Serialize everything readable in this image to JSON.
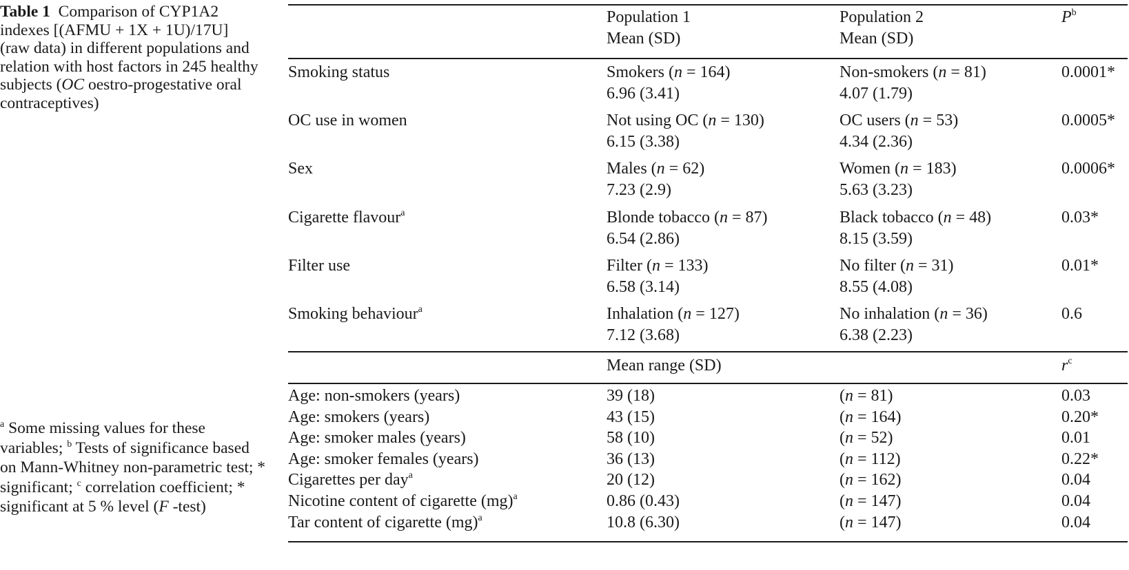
{
  "caption": {
    "label": "Table 1",
    "text": "Comparison of CYP1A2 indexes [(AFMU + 1X + 1U)/17U] (raw data) in different populations and relation with host factors in 245 healthy subjects (",
    "oc_abbrev": "OC",
    "text_end": " oestro-progestative oral contraceptives)"
  },
  "footnotes": {
    "a_mark": "a",
    "a_text": " Some missing values for these variables; ",
    "b_mark": "b",
    "b_text": " Tests of significance based on Mann-Whitney non-parametric test; * significant; ",
    "c_mark": "c",
    "c_text": " correlation coefficient; * significant at 5 % level (",
    "f_italic": "F",
    "f_end": " -test)"
  },
  "header": {
    "pop1_line1": "Population 1",
    "pop1_line2": "Mean (SD)",
    "pop2_line1": "Population 2",
    "pop2_line2": "Mean (SD)",
    "p_label": "P",
    "p_sup": "b"
  },
  "comparison_rows": [
    {
      "factor": "Smoking status",
      "factor_sup": "",
      "pop1_group": "Smokers (",
      "pop1_n": "n",
      "pop1_count": " = 164)",
      "pop1_value": "6.96 (3.41)",
      "pop2_group": "Non-smokers (",
      "pop2_n": "n",
      "pop2_count": " = 81)",
      "pop2_value": "4.07 (1.79)",
      "p": "0.0001*"
    },
    {
      "factor": "OC use in women",
      "factor_sup": "",
      "pop1_group": "Not using OC (",
      "pop1_n": "n",
      "pop1_count": " = 130)",
      "pop1_value": "6.15 (3.38)",
      "pop2_group": "OC users (",
      "pop2_n": "n",
      "pop2_count": " = 53)",
      "pop2_value": "4.34 (2.36)",
      "p": "0.0005*"
    },
    {
      "factor": "Sex",
      "factor_sup": "",
      "pop1_group": "Males (",
      "pop1_n": "n",
      "pop1_count": " = 62)",
      "pop1_value": "7.23 (2.9)",
      "pop2_group": "Women (",
      "pop2_n": "n",
      "pop2_count": " = 183)",
      "pop2_value": "5.63 (3.23)",
      "p": "0.0006*"
    },
    {
      "factor": "Cigarette flavour",
      "factor_sup": "a",
      "pop1_group": "Blonde tobacco (",
      "pop1_n": "n",
      "pop1_count": " = 87)",
      "pop1_value": "6.54 (2.86)",
      "pop2_group": "Black tobacco (",
      "pop2_n": "n",
      "pop2_count": " = 48)",
      "pop2_value": "8.15 (3.59)",
      "p": "0.03*"
    },
    {
      "factor": "Filter use",
      "factor_sup": "",
      "pop1_group": "Filter (",
      "pop1_n": "n",
      "pop1_count": " = 133)",
      "pop1_value": "6.58 (3.14)",
      "pop2_group": "No filter (",
      "pop2_n": "n",
      "pop2_count": " = 31)",
      "pop2_value": "8.55 (4.08)",
      "p": "0.01*"
    },
    {
      "factor": "Smoking behaviour",
      "factor_sup": "a",
      "pop1_group": "Inhalation (",
      "pop1_n": "n",
      "pop1_count": " = 127)",
      "pop1_value": "7.12 (3.68)",
      "pop2_group": "No inhalation (",
      "pop2_n": "n",
      "pop2_count": " = 36)",
      "pop2_value": "6.38 (2.23)",
      "p": "0.6"
    }
  ],
  "header2": {
    "mean_range": "Mean range (SD)",
    "r_label": "r",
    "r_sup": "c"
  },
  "correlation_rows": [
    {
      "factor": "Age: non-smokers (years)",
      "factor_sup": "",
      "mean": "39 (18)",
      "n_open": "(",
      "n_italic": "n",
      "n_count": " = 81)",
      "r": "0.03"
    },
    {
      "factor": "Age: smokers (years)",
      "factor_sup": "",
      "mean": "43 (15)",
      "n_open": "(",
      "n_italic": "n",
      "n_count": " = 164)",
      "r": "0.20*"
    },
    {
      "factor": "Age: smoker males (years)",
      "factor_sup": "",
      "mean": "58 (10)",
      "n_open": "(",
      "n_italic": "n",
      "n_count": " = 52)",
      "r": "0.01"
    },
    {
      "factor": "Age: smoker females (years)",
      "factor_sup": "",
      "mean": "36 (13)",
      "n_open": "(",
      "n_italic": "n",
      "n_count": " = 112)",
      "r": "0.22*"
    },
    {
      "factor": "Cigarettes per day",
      "factor_sup": "a",
      "mean": "20 (12)",
      "n_open": "(",
      "n_italic": "n",
      "n_count": " = 162)",
      "r": "0.04"
    },
    {
      "factor": "Nicotine content of cigarette (mg)",
      "factor_sup": "a",
      "mean": "0.86 (0.43)",
      "n_open": "(",
      "n_italic": "n",
      "n_count": " = 147)",
      "r": "0.04"
    },
    {
      "factor": "Tar content of cigarette (mg)",
      "factor_sup": "a",
      "mean": "10.8 (6.30)",
      "n_open": "(",
      "n_italic": "n",
      "n_count": " = 147)",
      "r": "0.04"
    }
  ]
}
